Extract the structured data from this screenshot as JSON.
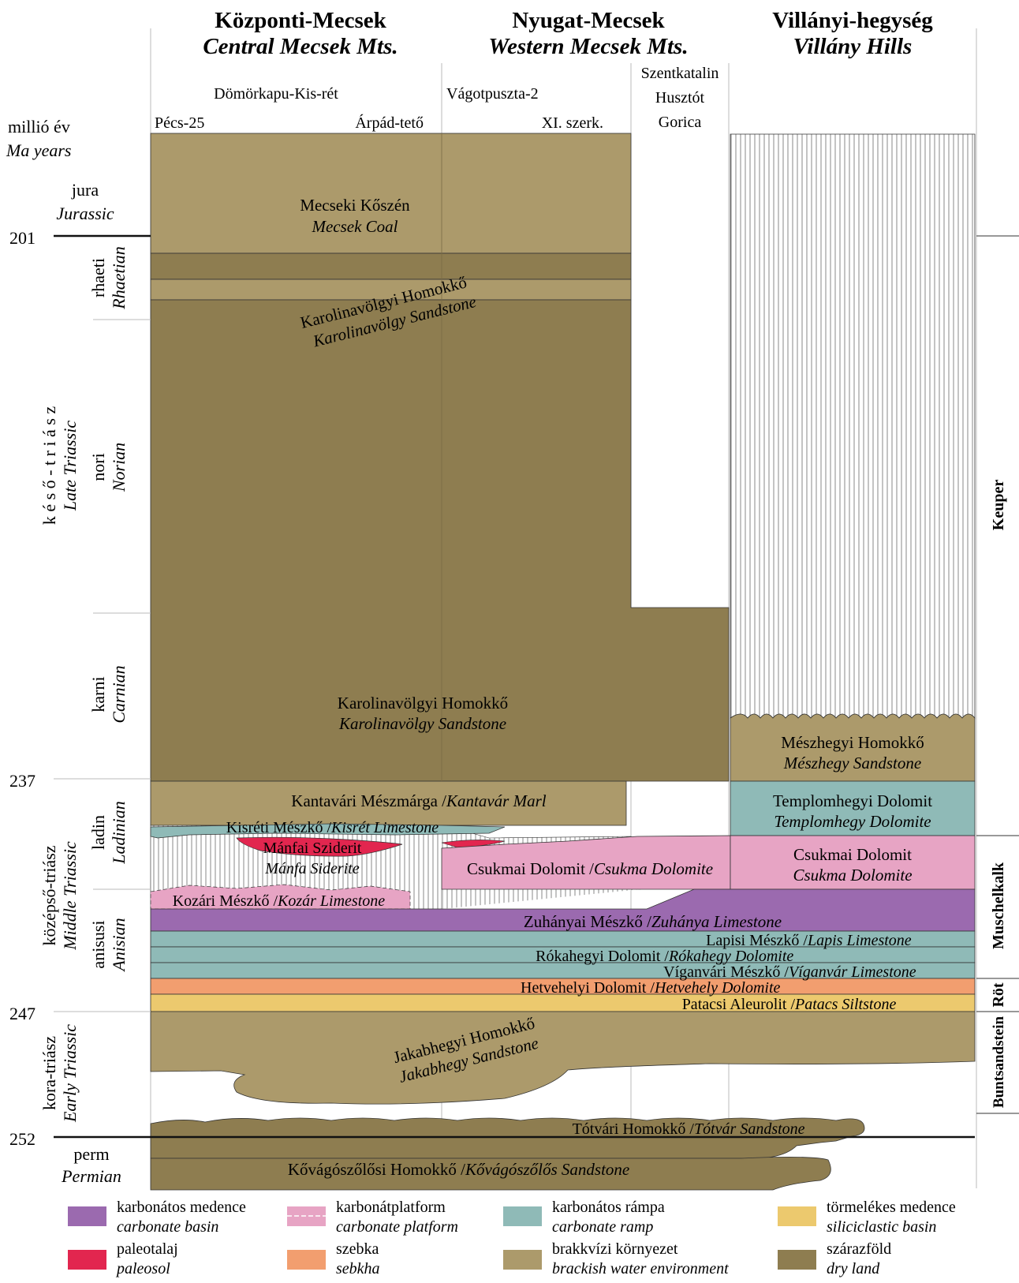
{
  "regions": {
    "central": {
      "hu": "Központi-Mecsek",
      "en": "Central Mecsek Mts."
    },
    "western": {
      "hu": "Nyugat-Mecsek",
      "en": "Western Mecsek Mts."
    },
    "villany": {
      "hu": "Villányi-hegység",
      "en": "Villány Hills"
    }
  },
  "localities": {
    "pecs": "Pécs-25",
    "domorkapu": "Dömörkapu-Kis-rét",
    "arpad": "Árpád-tető",
    "vagot": "Vágotpuszta-2",
    "xi": "XI. szerk.",
    "szent": "Szentkatalin",
    "husztot": "Husztót",
    "gorica": "Gorica"
  },
  "axis": {
    "hu": "millió év",
    "en": "Ma years",
    "ages": [
      "201",
      "237",
      "247",
      "252"
    ]
  },
  "periods": {
    "jura": {
      "hu": "jura",
      "en": "Jurassic"
    },
    "rhaeti": {
      "hu": "rhaeti",
      "en": "Rhaetian"
    },
    "nori": {
      "hu": "nori",
      "en": "Norian"
    },
    "late": {
      "hu": "k é s ő - t r i á s z",
      "en": "Late Triassic"
    },
    "karni": {
      "hu": "karni",
      "en": "Carnian"
    },
    "ladin": {
      "hu": "ladin",
      "en": "Ladinian"
    },
    "anisusi": {
      "hu": "anisusi",
      "en": "Anisian"
    },
    "middle": {
      "hu": "középső-triász",
      "en": "Middle Triassic"
    },
    "early": {
      "hu": "kora-triász",
      "en": "Early Triassic"
    },
    "perm": {
      "hu": "perm",
      "en": "Permian"
    }
  },
  "facies_right": [
    "Keuper",
    "Muschelkalk",
    "Röt",
    "Buntsandstein"
  ],
  "units": {
    "mecsek_coal": {
      "hu": "Mecseki Kőszén",
      "en": "Mecsek Coal"
    },
    "karolina_top": {
      "hu": "Karolinavölgyi Homokkő",
      "en": "Karolinavölgy Sandstone"
    },
    "karolina_main": {
      "hu": "Karolinavölgyi Homokkő",
      "en": "Karolinavölgy Sandstone"
    },
    "meszhegy": {
      "hu": "Mészhegyi Homokkő",
      "en": "Mészhegy Sandstone"
    },
    "kantavar": {
      "hu": "Kantavári Mészmárga / ",
      "en": "Kantavár Marl"
    },
    "templom": {
      "hu": "Templomhegyi Dolomit",
      "en": "Templomhegy Dolomite"
    },
    "kisret": {
      "hu": "Kisréti Mészkő / ",
      "en": "Kisrét Limestone"
    },
    "manfa": {
      "hu": "Mánfai Sziderit",
      "en": "Mánfa Siderite"
    },
    "csukma_w": {
      "hu": "Csukmai Dolomit / ",
      "en": "Csukma Dolomite"
    },
    "csukma_v": {
      "hu": "Csukmai Dolomit",
      "en": "Csukma Dolomite"
    },
    "kozar": {
      "hu": "Kozári Mészkő / ",
      "en": "Kozár Limestone"
    },
    "zuhanya": {
      "hu": "Zuhányai Mészkő / ",
      "en": "Zuhánya Limestone"
    },
    "lapis": {
      "hu": "Lapisi Mészkő / ",
      "en": "Lapis Limestone"
    },
    "rokahegy": {
      "hu": "Rókahegyi Dolomit / ",
      "en": "Rókahegy Dolomite"
    },
    "viganvar": {
      "hu": "Víganvári Mészkő /",
      "en": "Víganvár Limestone"
    },
    "hetvehely": {
      "hu": "Hetvehelyi Dolomit / ",
      "en": "Hetvehely Dolomite"
    },
    "patacs": {
      "hu": "Patacsi Aleurolit / ",
      "en": "Patacs Siltstone"
    },
    "jakabhegy": {
      "hu": "Jakabhegyi Homokkő",
      "en": "Jakabhegy Sandstone"
    },
    "totvar": {
      "hu": "Tótvári Homokkő / ",
      "en": "Tótvár Sandstone"
    },
    "kovago": {
      "hu": "Kővágószőlősi Homokkő / ",
      "en": "Kővágószőlős Sandstone"
    }
  },
  "legend": [
    {
      "hu": "karbonátos medence",
      "en": "carbonate basin",
      "color": "#9b6aaf"
    },
    {
      "hu": "karbonátplatform",
      "en": "carbonate platform",
      "color": "#e7a4c4"
    },
    {
      "hu": "karbonátos rámpa",
      "en": "carbonate ramp",
      "color": "#8fbab7"
    },
    {
      "hu": "törmelékes medence",
      "en": "siliciclastic basin",
      "color": "#ecc96e"
    },
    {
      "hu": "paleotalaj",
      "en": "paleosol",
      "color": "#e2264f"
    },
    {
      "hu": "szebka",
      "en": "sebkha",
      "color": "#f29e6f"
    },
    {
      "hu": "brakkvízi környezet",
      "en": "brackish water environment",
      "color": "#ac9a6b"
    },
    {
      "hu": "szárazföld",
      "en": "dry land",
      "color": "#8e7d50"
    }
  ],
  "colors": {
    "brackish": "#ac9a6b",
    "dryland": "#8e7d50",
    "basin": "#9b6aaf",
    "platform": "#e7a4c4",
    "ramp": "#8fbab7",
    "siliciclastic": "#ecc96e",
    "paleosol": "#e2264f",
    "sebkha": "#f29e6f"
  }
}
